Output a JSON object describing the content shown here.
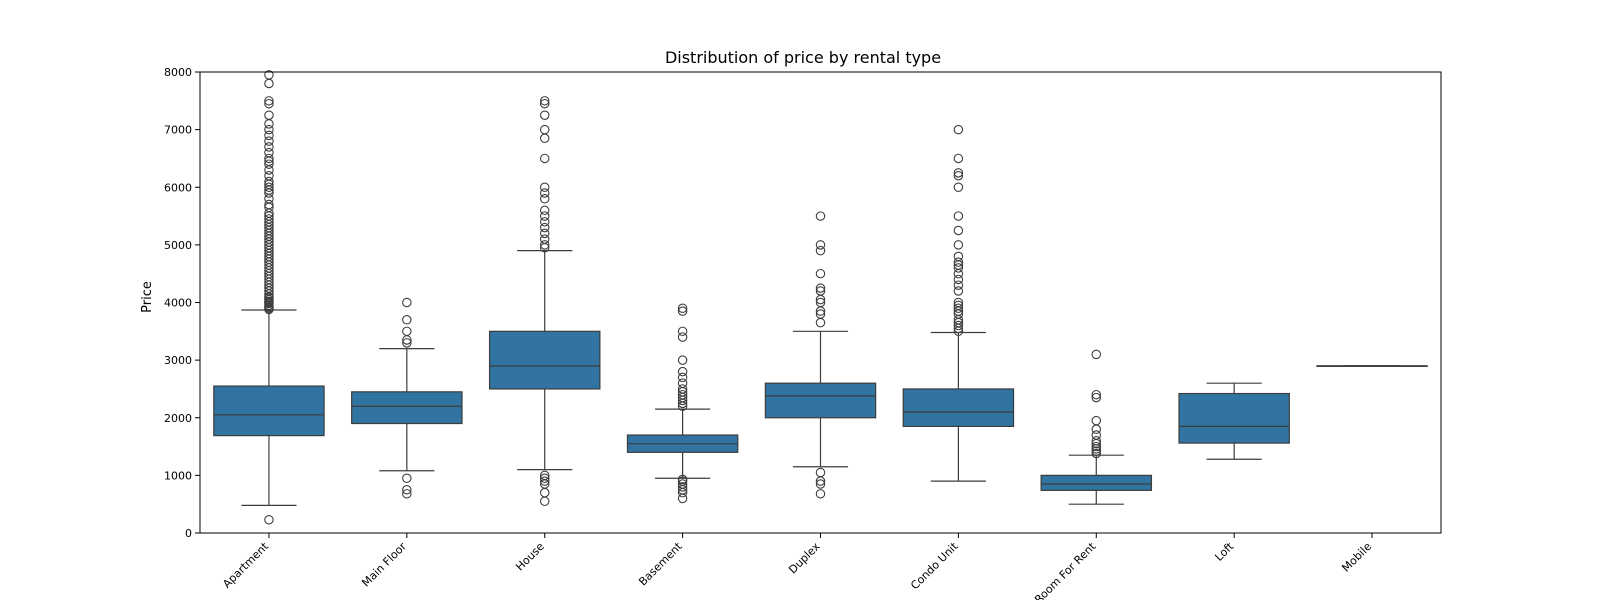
{
  "chart_data": {
    "type": "box",
    "title": "Distribution of price by rental type",
    "xlabel": "",
    "ylabel": "Price",
    "ylim": [
      0,
      8000
    ],
    "yticks": [
      0,
      1000,
      2000,
      3000,
      4000,
      5000,
      6000,
      7000,
      8000
    ],
    "grid": false,
    "box_color": "#3274a1",
    "categories": [
      "Apartment",
      "Main Floor",
      "House",
      "Basement",
      "Duplex",
      "Condo Unit",
      "Room For Rent",
      "Loft",
      "Mobile"
    ],
    "boxes": [
      {
        "category": "Apartment",
        "whisker_low": 480,
        "q1": 1690,
        "median": 2050,
        "q3": 2550,
        "whisker_high": 3870,
        "outliers": [
          230,
          3880,
          3900,
          3920,
          3950,
          3980,
          4000,
          4020,
          4050,
          4080,
          4100,
          4150,
          4200,
          4250,
          4300,
          4350,
          4400,
          4450,
          4500,
          4550,
          4600,
          4650,
          4700,
          4750,
          4800,
          4850,
          4900,
          4950,
          5000,
          5050,
          5100,
          5150,
          5200,
          5250,
          5300,
          5350,
          5400,
          5450,
          5500,
          5550,
          5650,
          5700,
          5800,
          5900,
          5950,
          6000,
          6050,
          6100,
          6200,
          6300,
          6400,
          6450,
          6500,
          6600,
          6700,
          6800,
          6900,
          7000,
          7100,
          7250,
          7450,
          7500,
          7800,
          7950
        ]
      },
      {
        "category": "Main Floor",
        "whisker_low": 1080,
        "q1": 1900,
        "median": 2200,
        "q3": 2450,
        "whisker_high": 3200,
        "outliers": [
          680,
          750,
          950,
          3300,
          3350,
          3500,
          3700,
          4000
        ]
      },
      {
        "category": "House",
        "whisker_low": 1100,
        "q1": 2500,
        "median": 2900,
        "q3": 3500,
        "whisker_high": 4900,
        "outliers": [
          550,
          700,
          850,
          900,
          950,
          1000,
          4950,
          5000,
          5100,
          5200,
          5300,
          5400,
          5500,
          5600,
          5800,
          5900,
          6000,
          6500,
          6850,
          7000,
          7250,
          7450,
          7500
        ]
      },
      {
        "category": "Basement",
        "whisker_low": 950,
        "q1": 1400,
        "median": 1550,
        "q3": 1700,
        "whisker_high": 2150,
        "outliers": [
          600,
          700,
          750,
          800,
          850,
          900,
          930,
          2200,
          2250,
          2300,
          2350,
          2400,
          2450,
          2500,
          2600,
          2700,
          2800,
          3000,
          3400,
          3500,
          3850,
          3900
        ]
      },
      {
        "category": "Duplex",
        "whisker_low": 1150,
        "q1": 2000,
        "median": 2380,
        "q3": 2600,
        "whisker_high": 3500,
        "outliers": [
          680,
          850,
          900,
          1050,
          3650,
          3800,
          3850,
          4000,
          4050,
          4200,
          4250,
          4500,
          4900,
          5000,
          5500
        ]
      },
      {
        "category": "Condo Unit",
        "whisker_low": 900,
        "q1": 1850,
        "median": 2100,
        "q3": 2500,
        "whisker_high": 3480,
        "outliers": [
          3500,
          3550,
          3600,
          3650,
          3700,
          3800,
          3850,
          3900,
          3950,
          4000,
          4200,
          4300,
          4400,
          4500,
          4600,
          4650,
          4700,
          4800,
          5000,
          5250,
          5500,
          6000,
          6200,
          6250,
          6500,
          7000
        ]
      },
      {
        "category": "Room For Rent",
        "whisker_low": 500,
        "q1": 740,
        "median": 850,
        "q3": 1000,
        "whisker_high": 1350,
        "outliers": [
          1380,
          1420,
          1460,
          1500,
          1550,
          1600,
          1700,
          1800,
          1950,
          2350,
          2400,
          3100
        ]
      },
      {
        "category": "Loft",
        "whisker_low": 1280,
        "q1": 1560,
        "median": 1850,
        "q3": 2420,
        "whisker_high": 2600,
        "outliers": []
      },
      {
        "category": "Mobile",
        "whisker_low": 2900,
        "q1": 2900,
        "median": 2900,
        "q3": 2900,
        "whisker_high": 2900,
        "outliers": []
      }
    ]
  }
}
